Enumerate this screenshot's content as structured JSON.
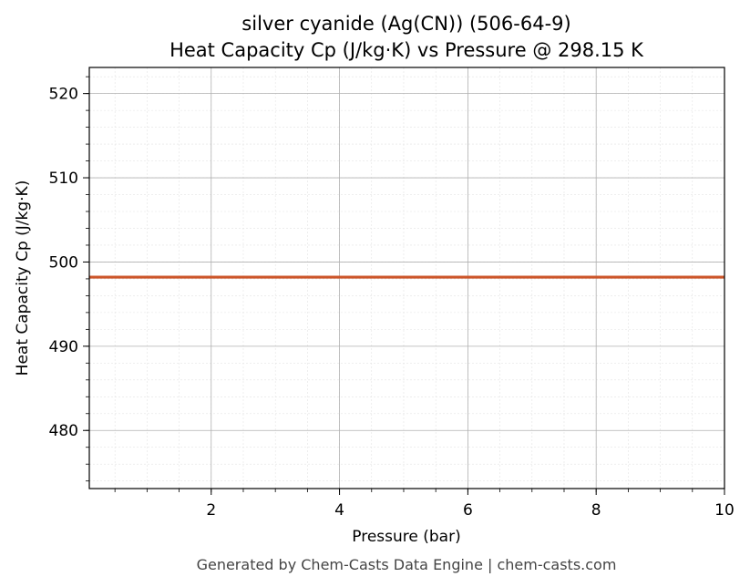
{
  "chart_data": {
    "type": "line",
    "title_line1": "silver cyanide (Ag(CN)) (506-64-9)",
    "title_line2": "Heat Capacity Cp (J/kg·K) vs Pressure @ 298.15 K",
    "xlabel": "Pressure (bar)",
    "ylabel": "Heat Capacity Cp (J/kg·K)",
    "xlim": [
      0.1,
      10
    ],
    "ylim": [
      473.1,
      523.1
    ],
    "xticks": [
      2,
      4,
      6,
      8,
      10
    ],
    "yticks": [
      480,
      490,
      500,
      510,
      520
    ],
    "grid": true,
    "series": [
      {
        "x": [
          0.1,
          10
        ],
        "y": [
          498.2,
          498.2
        ],
        "color": "#cc5529"
      }
    ]
  },
  "footer": "Generated by Chem-Casts Data Engine | chem-casts.com"
}
